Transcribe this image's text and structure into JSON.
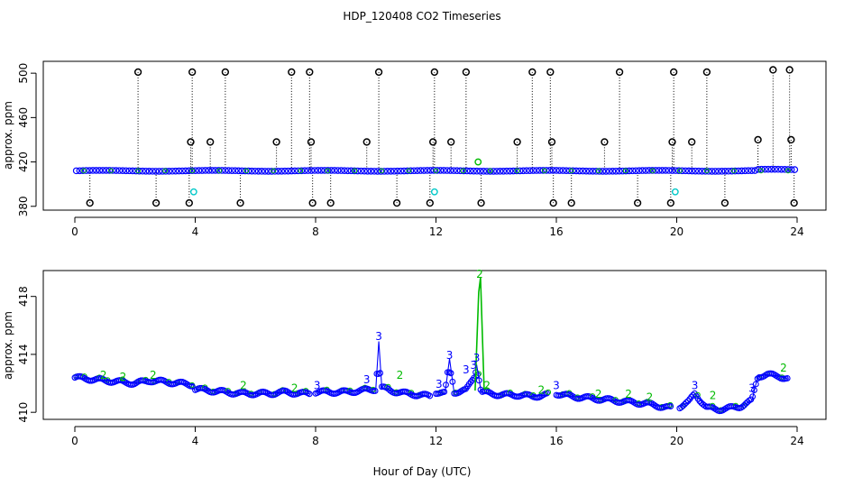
{
  "title": "HDP_120408  CO2 Timeseries",
  "xlabel": "Hour of Day (UTC)",
  "chart_data": [
    {
      "type": "scatter",
      "ylabel": "approx. ppm",
      "xlim": [
        0,
        24
      ],
      "ylim": [
        379,
        505
      ],
      "xticks": [
        0,
        4,
        8,
        12,
        16,
        20,
        24
      ],
      "yticks": [
        380,
        420,
        460,
        500
      ],
      "colors": {
        "raw": "#000000",
        "smooth": "#0000ff",
        "cyan": "#00c8c8",
        "green": "#00bb00"
      },
      "series": [
        {
          "name": "",
          "marker": "black-open-circle-with-drop-line",
          "x": [
            0.5,
            2.1,
            2.7,
            3.8,
            3.85,
            3.9,
            4.5,
            5.0,
            5.5,
            6.7,
            7.2,
            7.8,
            7.85,
            7.9,
            8.5,
            9.7,
            10.1,
            10.7,
            11.8,
            11.9,
            11.95,
            12.5,
            13.0,
            13.5,
            14.7,
            15.2,
            15.8,
            15.85,
            15.9,
            16.5,
            17.6,
            18.1,
            18.7,
            19.8,
            19.85,
            19.9,
            20.5,
            21.0,
            21.6,
            22.7,
            23.2,
            23.75,
            23.8,
            23.9
          ],
          "y": [
            383,
            501,
            383,
            383,
            438,
            501,
            438,
            501,
            383,
            438,
            501,
            501,
            438,
            383,
            383,
            438,
            501,
            383,
            383,
            438,
            501,
            438,
            501,
            383,
            438,
            501,
            501,
            438,
            383,
            383,
            438,
            501,
            383,
            383,
            438,
            501,
            438,
            501,
            383,
            440,
            503,
            503,
            440,
            383
          ]
        },
        {
          "name": "",
          "marker": "cyan-open-circle",
          "x": [
            3.95,
            11.95,
            19.95,
            13.4
          ],
          "y": [
            393,
            393,
            393,
            420
          ]
        }
      ]
    },
    {
      "type": "line",
      "ylabel": "approx. ppm",
      "xlim": [
        0,
        24
      ],
      "ylim": [
        409.7,
        419.6
      ],
      "xticks": [
        0,
        4,
        8,
        12,
        16,
        20,
        24
      ],
      "yticks": [
        410,
        414,
        418
      ],
      "series": [
        {
          "name": "",
          "color": "#0000ff",
          "x": [
            0,
            0.5,
            1,
            1.5,
            2,
            2.5,
            3,
            3.5,
            3.95
          ],
          "y": [
            412.4,
            412.3,
            412.2,
            412.1,
            412.0,
            412.2,
            412.1,
            412.0,
            411.9
          ]
        },
        {
          "name": "",
          "color": "#0000ff",
          "x": [
            4,
            4.5,
            5,
            5.5,
            6,
            6.5,
            7,
            7.5,
            7.8
          ],
          "y": [
            411.6,
            411.5,
            411.4,
            411.3,
            411.3,
            411.3,
            411.4,
            411.3,
            411.3
          ]
        },
        {
          "name": "",
          "color": "#0000ff",
          "x": [
            8,
            8.5,
            9,
            9.5,
            10.0,
            10.1,
            10.2,
            10.5,
            11,
            11.5,
            11.8
          ],
          "y": [
            411.4,
            411.4,
            411.4,
            411.5,
            411.6,
            414.9,
            411.7,
            411.5,
            411.3,
            411.2,
            411.1
          ]
        },
        {
          "name": "",
          "color": "#0000ff",
          "x": [
            12,
            12.3,
            12.45,
            12.6,
            13.0,
            13.3,
            13.35,
            13.5,
            13.8,
            14.2,
            14.7,
            15.2,
            15.7
          ],
          "y": [
            411.4,
            411.3,
            413.7,
            411.4,
            411.5,
            412.6,
            413.3,
            411.4,
            411.3,
            411.2,
            411.2,
            411.1,
            411.2
          ]
        },
        {
          "name": "",
          "color": "#0000ff",
          "x": [
            16,
            16.5,
            17,
            17.5,
            18,
            18.5,
            19,
            19.5,
            19.8
          ],
          "y": [
            411.3,
            411.1,
            411.0,
            410.9,
            410.8,
            410.7,
            410.6,
            410.4,
            410.3
          ]
        },
        {
          "name": "",
          "color": "#0000ff",
          "x": [
            20.1,
            20.4,
            20.6,
            21,
            21.4,
            21.8,
            22.1,
            22.5,
            22.6,
            22.7,
            23,
            23.4,
            23.7
          ],
          "y": [
            410.4,
            410.7,
            411.3,
            410.3,
            410.2,
            410.3,
            410.4,
            410.8,
            411.7,
            412.5,
            412.6,
            412.5,
            412.3
          ]
        },
        {
          "name": "",
          "color": "#00bb00",
          "x": [
            13.3,
            13.42,
            13.48,
            13.6
          ],
          "y": [
            411.5,
            418.3,
            419.3,
            411.6
          ]
        }
      ],
      "annotations": [
        {
          "x": 10.1,
          "y": 415.0,
          "text": "3",
          "color": "#0000ff"
        },
        {
          "x": 12.45,
          "y": 413.7,
          "text": "3",
          "color": "#0000ff"
        },
        {
          "x": 13.0,
          "y": 412.7,
          "text": "3",
          "color": "#0000ff"
        },
        {
          "x": 13.25,
          "y": 413.0,
          "text": "3",
          "color": "#0000ff"
        },
        {
          "x": 13.35,
          "y": 413.5,
          "text": "3",
          "color": "#0000ff"
        },
        {
          "x": 20.6,
          "y": 411.6,
          "text": "3",
          "color": "#0000ff"
        },
        {
          "x": 22.5,
          "y": 411.4,
          "text": "3",
          "color": "#0000ff"
        },
        {
          "x": 9.7,
          "y": 412.0,
          "text": "3",
          "color": "#0000ff"
        },
        {
          "x": 12.1,
          "y": 411.7,
          "text": "3",
          "color": "#0000ff"
        },
        {
          "x": 16.0,
          "y": 411.6,
          "text": "3",
          "color": "#0000ff"
        },
        {
          "x": 8.05,
          "y": 411.6,
          "text": "3",
          "color": "#0000ff"
        },
        {
          "x": 13.45,
          "y": 419.3,
          "text": "2",
          "color": "#00bb00"
        },
        {
          "x": 10.8,
          "y": 412.3,
          "text": "2",
          "color": "#00bb00"
        },
        {
          "x": 23.55,
          "y": 412.8,
          "text": "2",
          "color": "#00bb00"
        },
        {
          "x": 13.7,
          "y": 411.6,
          "text": "2",
          "color": "#00bb00"
        },
        {
          "x": 0.95,
          "y": 412.3,
          "text": "2",
          "color": "#00bb00"
        },
        {
          "x": 1.6,
          "y": 412.2,
          "text": "2",
          "color": "#00bb00"
        },
        {
          "x": 2.6,
          "y": 412.3,
          "text": "2",
          "color": "#00bb00"
        },
        {
          "x": 5.6,
          "y": 411.6,
          "text": "2",
          "color": "#00bb00"
        },
        {
          "x": 7.3,
          "y": 411.4,
          "text": "2",
          "color": "#00bb00"
        },
        {
          "x": 15.5,
          "y": 411.3,
          "text": "2",
          "color": "#00bb00"
        },
        {
          "x": 17.4,
          "y": 411.0,
          "text": "2",
          "color": "#00bb00"
        },
        {
          "x": 18.4,
          "y": 411.0,
          "text": "2",
          "color": "#00bb00"
        },
        {
          "x": 19.1,
          "y": 410.8,
          "text": "2",
          "color": "#00bb00"
        },
        {
          "x": 21.2,
          "y": 410.9,
          "text": "2",
          "color": "#00bb00"
        }
      ]
    }
  ]
}
